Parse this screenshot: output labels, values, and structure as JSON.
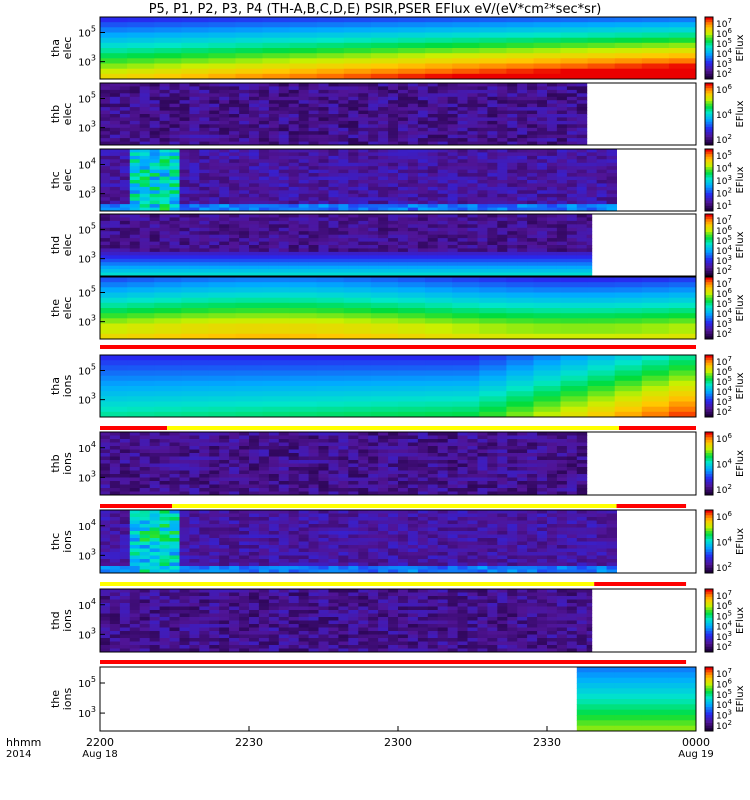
{
  "chart_data": {
    "type": "heatmap",
    "title": "P5, P1, P2, P3, P4 (TH-A,B,C,D,E) PSIR,PSER EFlux eV/(eV*cm²*sec*sr)",
    "xaxis": {
      "row_label_1": "hhmm",
      "row_label_2": "2014",
      "ticks": [
        {
          "t": 0,
          "label": "2200",
          "sub": "Aug 18"
        },
        {
          "t": 30,
          "label": "2230",
          "sub": ""
        },
        {
          "t": 60,
          "label": "2300",
          "sub": ""
        },
        {
          "t": 90,
          "label": "2330",
          "sub": ""
        },
        {
          "t": 120,
          "label": "0000",
          "sub": "Aug 19"
        }
      ],
      "range_minutes": [
        0,
        120
      ]
    },
    "colorbar_label": "EFlux",
    "panels": [
      {
        "ylabel": [
          "tha",
          "elec"
        ],
        "yticks": [
          "10^5",
          "10^3"
        ],
        "cb_ticks": [
          "10^7",
          "10^6",
          "10^5",
          "10^4",
          "10^3",
          "10^2"
        ],
        "data_end_min": 120,
        "pattern": "tha_elec"
      },
      {
        "ylabel": [
          "thb",
          "elec"
        ],
        "yticks": [
          "10^5",
          "10^3"
        ],
        "cb_ticks": [
          "10^6",
          "10^4",
          "10^2"
        ],
        "data_end_min": 98,
        "pattern": "noise"
      },
      {
        "ylabel": [
          "thc",
          "elec"
        ],
        "yticks": [
          "10^4",
          "10^3"
        ],
        "cb_ticks": [
          "10^5",
          "10^4",
          "10^3",
          "10^2",
          "10^1"
        ],
        "data_end_min": 104,
        "pattern": "thc"
      },
      {
        "ylabel": [
          "thd",
          "elec"
        ],
        "yticks": [
          "10^5",
          "10^3"
        ],
        "cb_ticks": [
          "10^7",
          "10^6",
          "10^5",
          "10^4",
          "10^3",
          "10^2"
        ],
        "data_end_min": 99,
        "pattern": "thd_elec"
      },
      {
        "ylabel": [
          "the",
          "elec"
        ],
        "yticks": [
          "10^5",
          "10^3"
        ],
        "cb_ticks": [
          "10^7",
          "10^6",
          "10^5",
          "10^4",
          "10^3",
          "10^2"
        ],
        "data_end_min": 120,
        "pattern": "the_elec"
      },
      {
        "ylabel": [
          "tha",
          "ions"
        ],
        "yticks": [
          "10^5",
          "10^3"
        ],
        "cb_ticks": [
          "10^7",
          "10^6",
          "10^5",
          "10^4",
          "10^3",
          "10^2"
        ],
        "data_end_min": 120,
        "pattern": "tha_ions"
      },
      {
        "ylabel": [
          "thb",
          "ions"
        ],
        "yticks": [
          "10^4",
          "10^3"
        ],
        "cb_ticks": [
          "10^6",
          "10^4",
          "10^2"
        ],
        "data_end_min": 98,
        "pattern": "noise"
      },
      {
        "ylabel": [
          "thc",
          "ions"
        ],
        "yticks": [
          "10^4",
          "10^3"
        ],
        "cb_ticks": [
          "10^6",
          "10^4",
          "10^2"
        ],
        "data_end_min": 104,
        "pattern": "thc"
      },
      {
        "ylabel": [
          "thd",
          "ions"
        ],
        "yticks": [
          "10^4",
          "10^3"
        ],
        "cb_ticks": [
          "10^7",
          "10^6",
          "10^5",
          "10^4",
          "10^3",
          "10^2"
        ],
        "data_end_min": 99,
        "pattern": "noise"
      },
      {
        "ylabel": [
          "the",
          "ions"
        ],
        "yticks": [
          "10^5",
          "10^3"
        ],
        "cb_ticks": [
          "10^7",
          "10^6",
          "10^5",
          "10^4",
          "10^3",
          "10^2"
        ],
        "data_start_min": 96,
        "data_end_min": 120,
        "pattern": "the_ions"
      }
    ],
    "mode_bars": [
      {
        "after_panel": 4,
        "segments": [
          {
            "from": 0,
            "to": 120,
            "color": "#ff0000"
          }
        ]
      },
      {
        "after_panel": 5,
        "segments": [
          {
            "from": 0,
            "to": 13.5,
            "color": "#ff0000"
          },
          {
            "from": 13.5,
            "to": 104.5,
            "color": "#ffff00"
          },
          {
            "from": 104.5,
            "to": 120,
            "color": "#ff0000"
          }
        ]
      },
      {
        "after_panel": 6,
        "segments": [
          {
            "from": 0,
            "to": 14.5,
            "color": "#ff0000"
          },
          {
            "from": 14.5,
            "to": 104,
            "color": "#ffff00"
          },
          {
            "from": 104,
            "to": 118,
            "color": "#ff0000"
          }
        ]
      },
      {
        "after_panel": 7,
        "segments": [
          {
            "from": 0,
            "to": 99.5,
            "color": "#ffff00"
          },
          {
            "from": 99.5,
            "to": 118,
            "color": "#ff0000"
          }
        ]
      },
      {
        "after_panel": 8,
        "segments": [
          {
            "from": 0,
            "to": 118,
            "color": "#ff0000"
          }
        ]
      }
    ],
    "colors": {
      "high": "#ff0000",
      "low": "#5a1a8a",
      "frame": "#000000"
    }
  }
}
